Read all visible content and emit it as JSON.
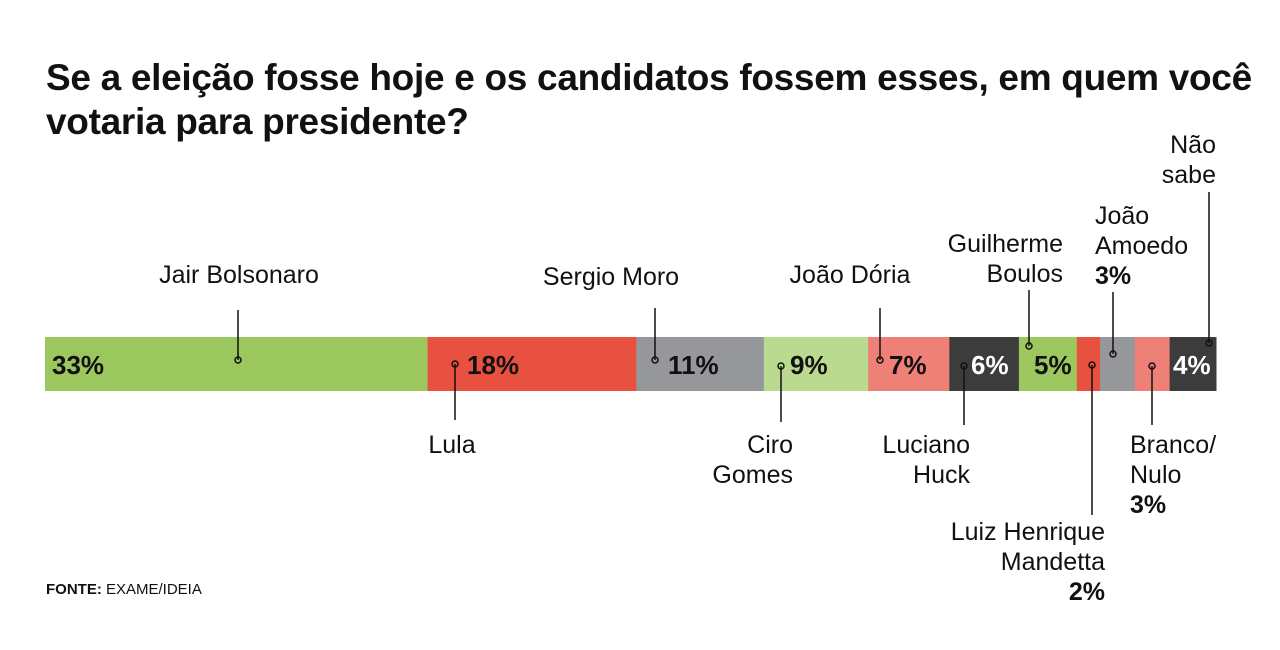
{
  "title": "Se a eleição fosse hoje e os candidatos fossem esses, em quem você votaria para presidente?",
  "source": {
    "label": "FONTE:",
    "value": "EXAME/IDEIA"
  },
  "chart_data": {
    "type": "bar",
    "orientation": "horizontal-stacked",
    "title": "Se a eleição fosse hoje e os candidatos fossem esses, em quem você votaria para presidente?",
    "unit": "%",
    "categories": [
      "Jair Bolsonaro",
      "Lula",
      "Sergio Moro",
      "Ciro Gomes",
      "João Dória",
      "Luciano Huck",
      "Guilherme Boulos",
      "Luiz Henrique Mandetta",
      "João Amoedo",
      "Branco/Nulo",
      "Não sabe"
    ],
    "values": [
      33,
      18,
      11,
      9,
      7,
      6,
      5,
      2,
      3,
      3,
      4
    ],
    "value_labels": [
      "33%",
      "18%",
      "11%",
      "9%",
      "7%",
      "6%",
      "5%",
      "2%",
      "3%",
      "3%",
      "4%"
    ],
    "colors": [
      "#9cc75f",
      "#e8503f",
      "#96979b",
      "#b9da8f",
      "#ef8078",
      "#3c3c3c",
      "#9cc75f",
      "#e8503f",
      "#96979b",
      "#ef8078",
      "#3c3c3c"
    ],
    "label_colors": [
      "#111",
      "#111",
      "#111",
      "#111",
      "#111",
      "#fff",
      "#111",
      "#111",
      "#111",
      "#111",
      "#fff"
    ]
  }
}
